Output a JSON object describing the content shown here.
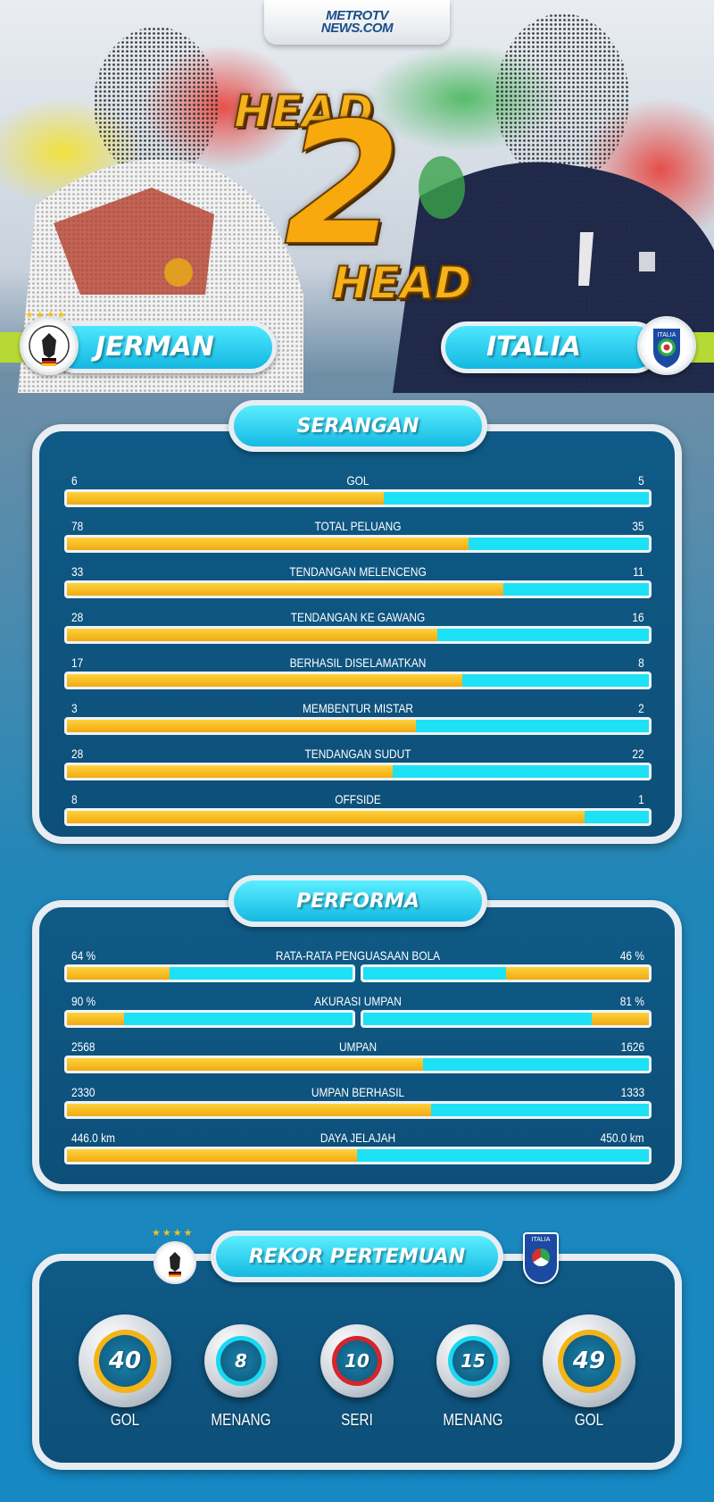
{
  "brand": {
    "line1": "METROTV",
    "line2": "NEWS.COM"
  },
  "headline": {
    "word1": "HEAD",
    "number": "2",
    "word2": "HEAD"
  },
  "teams": {
    "left": {
      "name": "JERMAN",
      "stars": "★★★★"
    },
    "right": {
      "name": "ITALIA",
      "crest_text": "ITALIA"
    }
  },
  "colors": {
    "germany_bar": "#f5b81c",
    "italy_bar": "#1de1f5",
    "panel": "#0f5a86",
    "title_cyan": "#2fd3f2"
  },
  "sections": {
    "attack": {
      "title": "SERANGAN",
      "stats": [
        {
          "label": "GOL",
          "left": "6",
          "right": "5",
          "left_share": 0.545
        },
        {
          "label": "TOTAL PELUANG",
          "left": "78",
          "right": "35",
          "left_share": 0.69
        },
        {
          "label": "TENDANGAN MELENCENG",
          "left": "33",
          "right": "11",
          "left_share": 0.75
        },
        {
          "label": "TENDANGAN KE GAWANG",
          "left": "28",
          "right": "16",
          "left_share": 0.636
        },
        {
          "label": "BERHASIL DISELAMATKAN",
          "left": "17",
          "right": "8",
          "left_share": 0.68
        },
        {
          "label": "MEMBENTUR MISTAR",
          "left": "3",
          "right": "2",
          "left_share": 0.6
        },
        {
          "label": "TENDANGAN SUDUT",
          "left": "28",
          "right": "22",
          "left_share": 0.56
        },
        {
          "label": "OFFSIDE",
          "left": "8",
          "right": "1",
          "left_share": 0.889
        }
      ]
    },
    "performance": {
      "title": "PERFORMA",
      "split_stats": [
        {
          "label": "RATA-RATA PENGUASAAN BOLA",
          "left": "64 %",
          "right": "46 %",
          "left_fill": 0.36,
          "right_fill": 0.5
        },
        {
          "label": "AKURASI UMPAN",
          "left": "90 %",
          "right": "81 %",
          "left_fill": 0.2,
          "right_fill": 0.2
        }
      ],
      "stats": [
        {
          "label": "UMPAN",
          "left": "2568",
          "right": "1626",
          "left_share": 0.612
        },
        {
          "label": "UMPAN BERHASIL",
          "left": "2330",
          "right": "1333",
          "left_share": 0.625
        },
        {
          "label": "DAYA JELAJAH",
          "left": "446.0 km",
          "right": "450.0 km",
          "left_share": 0.498
        }
      ]
    },
    "record": {
      "title": "REKOR PERTEMUAN",
      "items": [
        {
          "value": "40",
          "caption": "GOL",
          "ring": "#f3b418"
        },
        {
          "value": "8",
          "caption": "MENANG",
          "ring": "#1bd8f0"
        },
        {
          "value": "10",
          "caption": "SERI",
          "ring": "#d8242b"
        },
        {
          "value": "15",
          "caption": "MENANG",
          "ring": "#1bd8f0"
        },
        {
          "value": "49",
          "caption": "GOL",
          "ring": "#f3b418"
        }
      ]
    }
  }
}
